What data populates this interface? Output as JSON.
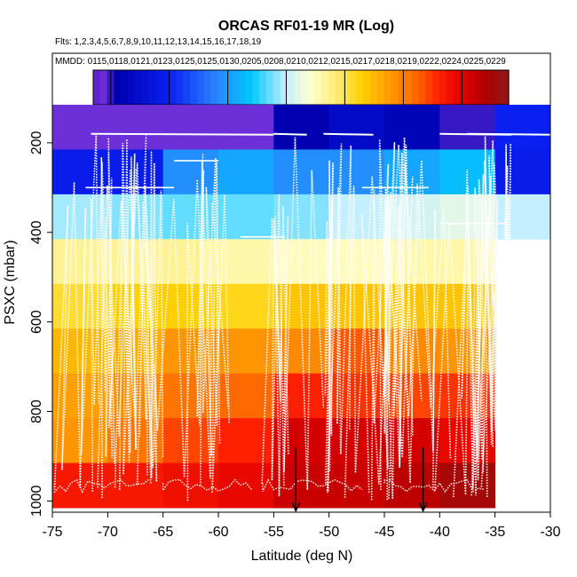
{
  "chart_data": {
    "type": "heatmap",
    "title": "ORCAS RF01-19 MR (Log)",
    "flights_label": "Flts: 1,2,3,4,5,6,7,8,9,10,11,12,13,14,15,16,17,18,19",
    "dates_label": "MMDD: 0115,0118,0121,0123,0125,0125,0130,0205,0208,0210,0212,0215,0217,0218,0219,0222,0224,0225,0229",
    "xlabel": "Latitude (deg N)",
    "ylabel": "PSXC (mbar)",
    "xlim": [
      -75,
      -30
    ],
    "ylim": [
      1025,
      0
    ],
    "xticks": [
      "-75",
      "-70",
      "-65",
      "-60",
      "-55",
      "-50",
      "-45",
      "-40",
      "-35",
      "-30"
    ],
    "yticks": [
      "200",
      "400",
      "600",
      "800",
      "1000"
    ],
    "colorbar": {
      "range": [
        -2.65,
        0.9
      ],
      "ticks": [
        "-2.5",
        "-2.0",
        "-1.5",
        "-1.0",
        "-0.5",
        "0.0",
        "0.5"
      ],
      "stops": [
        [
          -2.65,
          "#5a1fc8"
        ],
        [
          -2.55,
          "#6c2fd8"
        ],
        [
          -2.45,
          "#0000b0"
        ],
        [
          -2.0,
          "#0a20f0"
        ],
        [
          -1.6,
          "#2a84ff"
        ],
        [
          -1.3,
          "#00c8ff"
        ],
        [
          -1.0,
          "#c4efff"
        ],
        [
          -0.8,
          "#ffffd0"
        ],
        [
          -0.6,
          "#ffee80"
        ],
        [
          -0.35,
          "#ffd000"
        ],
        [
          -0.15,
          "#ffa000"
        ],
        [
          0.1,
          "#ff6a00"
        ],
        [
          0.3,
          "#ff2000"
        ],
        [
          0.5,
          "#e00000"
        ],
        [
          0.7,
          "#b00000"
        ],
        [
          0.9,
          "#8e1a1a"
        ]
      ]
    },
    "lat_bins": [
      -75,
      -70,
      -65,
      -60,
      -55,
      -50,
      -45,
      -40,
      -35,
      -30
    ],
    "pressure_bins": [
      115,
      215,
      315,
      415,
      515,
      615,
      715,
      815,
      915,
      1015
    ],
    "values": [
      [
        -2.55,
        -2.55,
        -2.55,
        -2.55,
        -2.45,
        -2.3,
        -2.4,
        -2.5,
        -2.0
      ],
      [
        -2.05,
        -2.05,
        -1.55,
        -1.45,
        -1.55,
        -1.55,
        -1.45,
        -1.35,
        -2.05
      ],
      [
        -1.05,
        -1.1,
        -1.15,
        -1.15,
        -1.1,
        -1.0,
        -0.95,
        -0.9,
        -1.0
      ],
      [
        -0.65,
        -0.65,
        -0.65,
        -0.7,
        -0.75,
        -0.75,
        -0.7,
        -0.7,
        null
      ],
      [
        -0.45,
        -0.35,
        -0.35,
        -0.4,
        -0.3,
        -0.3,
        -0.3,
        -0.3,
        null
      ],
      [
        -0.25,
        -0.2,
        -0.1,
        -0.1,
        -0.05,
        0.15,
        -0.05,
        -0.1,
        null
      ],
      [
        -0.15,
        -0.05,
        0.05,
        0.1,
        0.3,
        0.25,
        0.2,
        0.25,
        null
      ],
      [
        -0.1,
        0.05,
        0.2,
        0.3,
        0.55,
        0.55,
        0.55,
        0.45,
        null
      ],
      [
        0.35,
        0.35,
        0.4,
        0.45,
        0.6,
        0.6,
        0.65,
        0.75,
        null
      ]
    ],
    "surface_markers_lat": [
      -53,
      -41.5
    ]
  }
}
